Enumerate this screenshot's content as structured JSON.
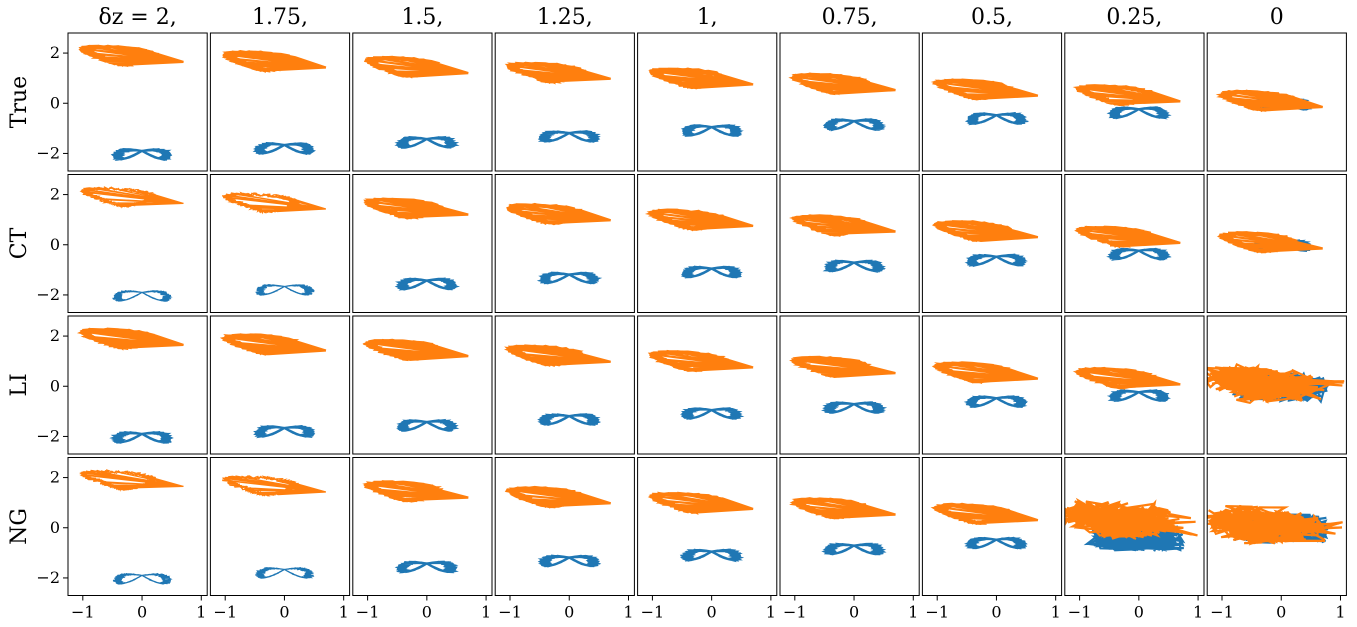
{
  "chart_data": {
    "type": "line",
    "grid": false,
    "column_titles": [
      "δz = 2,",
      "1.75,",
      "1.5,",
      "1.25,",
      "1,",
      "0.75,",
      "0.5,",
      "0.25,",
      "0"
    ],
    "row_labels": [
      "True",
      "CT",
      "LI",
      "NG"
    ],
    "xticks": [
      -1,
      0,
      1
    ],
    "xtick_labels": [
      "−1",
      "0",
      "1"
    ],
    "yticks": [
      -2,
      0,
      2
    ],
    "ytick_labels": [
      "−2",
      "0",
      "2"
    ],
    "xlim": [
      -1.25,
      1.1
    ],
    "ylim": [
      -2.7,
      2.8
    ],
    "series_colors": {
      "blue": "#1f77b4",
      "orange": "#ff7f0e"
    },
    "delta_z": [
      2,
      1.75,
      1.5,
      1.25,
      1,
      0.75,
      0.5,
      0.25,
      0
    ],
    "attractor_shape": {
      "orange": {
        "x_center": -0.15,
        "y_offset": 0.3,
        "x_half_width": 0.9,
        "y_half_height": 0.35
      },
      "blue": {
        "x_center": 0.0,
        "y_offset": -0.3,
        "x_half_width": 0.55,
        "y_half_height": 0.35
      }
    }
  }
}
